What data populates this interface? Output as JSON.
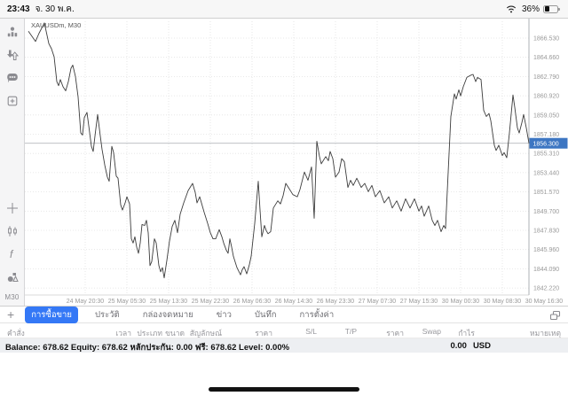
{
  "status_bar": {
    "time": "23:43",
    "date": "จ. 30 พ.ค.",
    "battery_percent": "36%"
  },
  "sidebar": {
    "icons": [
      "quotes-icon",
      "trade-icon",
      "chat-icon",
      "new-chart-icon",
      "crosshair-icon",
      "chart-type-icon",
      "indicators-icon",
      "objects-icon"
    ],
    "timeframe": "M30"
  },
  "chart_data": {
    "type": "line",
    "title": "XAUUSDm, M30",
    "symbol": "XAUUSDm",
    "timeframe": "M30",
    "current_price": "1856.300",
    "ylim": [
      1841.3,
      1868.4
    ],
    "grid": true,
    "legend": "none",
    "y_ticks": [
      "1866.530",
      "1864.660",
      "1862.790",
      "1860.920",
      "1859.050",
      "1857.180",
      "1855.310",
      "1853.440",
      "1851.570",
      "1849.700",
      "1847.830",
      "1845.960",
      "1844.090",
      "1842.220"
    ],
    "x_ticks": [
      "24 May 20:30",
      "25 May 05:30",
      "25 May 13:30",
      "25 May 22:30",
      "26 May 06:30",
      "26 May 14:30",
      "26 May 23:30",
      "27 May 07:30",
      "27 May 15:30",
      "30 May 00:30",
      "30 May 08:30",
      "30 May 16:30"
    ],
    "series": [
      {
        "name": "XAUUSDm M30 close",
        "points": [
          [
            32,
            1867.2
          ],
          [
            36,
            1866.7
          ],
          [
            40,
            1866.2
          ],
          [
            44,
            1867.0
          ],
          [
            50,
            1868.0
          ],
          [
            55,
            1866.0
          ],
          [
            58,
            1865.5
          ],
          [
            61,
            1864.7
          ],
          [
            64,
            1862.3
          ],
          [
            66,
            1861.9
          ],
          [
            68,
            1862.5
          ],
          [
            71,
            1861.8
          ],
          [
            74,
            1861.4
          ],
          [
            77,
            1862.3
          ],
          [
            80,
            1863.6
          ],
          [
            82,
            1863.9
          ],
          [
            85,
            1862.8
          ],
          [
            88,
            1860.8
          ],
          [
            91,
            1857.3
          ],
          [
            93,
            1857.1
          ],
          [
            95,
            1858.8
          ],
          [
            98,
            1859.3
          ],
          [
            100,
            1858.0
          ],
          [
            103,
            1856.0
          ],
          [
            105,
            1855.5
          ],
          [
            107,
            1857.0
          ],
          [
            110,
            1859.1
          ],
          [
            113,
            1857.0
          ],
          [
            115,
            1855.7
          ],
          [
            118,
            1854.2
          ],
          [
            121,
            1853.0
          ],
          [
            123,
            1852.6
          ],
          [
            126,
            1856.0
          ],
          [
            128,
            1855.4
          ],
          [
            131,
            1853.1
          ],
          [
            133,
            1852.9
          ],
          [
            136,
            1850.3
          ],
          [
            138,
            1849.8
          ],
          [
            141,
            1850.5
          ],
          [
            143,
            1851.1
          ],
          [
            146,
            1850.4
          ],
          [
            148,
            1847.0
          ],
          [
            150,
            1846.6
          ],
          [
            152,
            1847.2
          ],
          [
            154,
            1846.2
          ],
          [
            156,
            1845.6
          ],
          [
            158,
            1846.6
          ],
          [
            160,
            1848.4
          ],
          [
            163,
            1848.3
          ],
          [
            165,
            1848.8
          ],
          [
            167,
            1847.6
          ],
          [
            169,
            1844.4
          ],
          [
            171,
            1844.8
          ],
          [
            174,
            1847.0
          ],
          [
            176,
            1846.6
          ],
          [
            179,
            1844.4
          ],
          [
            181,
            1843.8
          ],
          [
            183,
            1844.2
          ],
          [
            185,
            1843.2
          ],
          [
            188,
            1844.9
          ],
          [
            191,
            1846.8
          ],
          [
            194,
            1848.2
          ],
          [
            197,
            1848.8
          ],
          [
            200,
            1847.6
          ],
          [
            203,
            1849.4
          ],
          [
            207,
            1850.5
          ],
          [
            212,
            1851.7
          ],
          [
            217,
            1852.4
          ],
          [
            220,
            1851.5
          ],
          [
            222,
            1850.5
          ],
          [
            225,
            1851.1
          ],
          [
            230,
            1849.6
          ],
          [
            234,
            1848.5
          ],
          [
            237,
            1847.6
          ],
          [
            240,
            1847.0
          ],
          [
            243,
            1847.0
          ],
          [
            247,
            1847.9
          ],
          [
            250,
            1847.2
          ],
          [
            252,
            1846.6
          ],
          [
            255,
            1845.9
          ],
          [
            257,
            1845.6
          ],
          [
            259,
            1847.0
          ],
          [
            261,
            1846.2
          ],
          [
            263,
            1845.3
          ],
          [
            267,
            1844.2
          ],
          [
            271,
            1843.5
          ],
          [
            273,
            1844.0
          ],
          [
            275,
            1844.3
          ],
          [
            278,
            1843.6
          ],
          [
            281,
            1844.5
          ],
          [
            283,
            1845.3
          ],
          [
            287,
            1848.5
          ],
          [
            291,
            1852.6
          ],
          [
            293,
            1849.8
          ],
          [
            295,
            1847.2
          ],
          [
            298,
            1848.3
          ],
          [
            300,
            1847.8
          ],
          [
            302,
            1847.5
          ],
          [
            305,
            1847.7
          ],
          [
            308,
            1850.0
          ],
          [
            313,
            1850.7
          ],
          [
            316,
            1850.4
          ],
          [
            319,
            1851.2
          ],
          [
            322,
            1852.4
          ],
          [
            325,
            1852.0
          ],
          [
            330,
            1851.3
          ],
          [
            335,
            1851.1
          ],
          [
            338,
            1851.8
          ],
          [
            343,
            1853.5
          ],
          [
            347,
            1852.7
          ],
          [
            351,
            1854.0
          ],
          [
            354,
            1849.0
          ],
          [
            357,
            1856.5
          ],
          [
            360,
            1855.0
          ],
          [
            362,
            1854.3
          ],
          [
            367,
            1855.0
          ],
          [
            370,
            1854.6
          ],
          [
            372,
            1855.5
          ],
          [
            375,
            1854.8
          ],
          [
            378,
            1853.0
          ],
          [
            382,
            1853.5
          ],
          [
            385,
            1854.8
          ],
          [
            388,
            1854.5
          ],
          [
            392,
            1852.0
          ],
          [
            395,
            1852.7
          ],
          [
            398,
            1852.2
          ],
          [
            402,
            1852.9
          ],
          [
            407,
            1852.0
          ],
          [
            411,
            1852.4
          ],
          [
            415,
            1851.6
          ],
          [
            419,
            1852.2
          ],
          [
            423,
            1851.1
          ],
          [
            428,
            1851.7
          ],
          [
            433,
            1850.5
          ],
          [
            438,
            1851.1
          ],
          [
            442,
            1850.0
          ],
          [
            447,
            1850.7
          ],
          [
            452,
            1849.7
          ],
          [
            457,
            1850.9
          ],
          [
            462,
            1850.0
          ],
          [
            467,
            1850.9
          ],
          [
            472,
            1849.7
          ],
          [
            475,
            1850.2
          ],
          [
            478,
            1849.2
          ],
          [
            483,
            1850.2
          ],
          [
            487,
            1848.8
          ],
          [
            490,
            1848.3
          ],
          [
            493,
            1848.8
          ],
          [
            497,
            1847.7
          ],
          [
            500,
            1848.3
          ],
          [
            502,
            1848.0
          ],
          [
            505,
            1853.5
          ],
          [
            508,
            1858.9
          ],
          [
            512,
            1861.1
          ],
          [
            514,
            1860.6
          ],
          [
            517,
            1861.5
          ],
          [
            519,
            1860.9
          ],
          [
            522,
            1861.8
          ],
          [
            526,
            1862.7
          ],
          [
            530,
            1862.9
          ],
          [
            533,
            1863.0
          ],
          [
            536,
            1862.3
          ],
          [
            538,
            1862.7
          ],
          [
            542,
            1862.5
          ],
          [
            545,
            1859.5
          ],
          [
            548,
            1858.9
          ],
          [
            551,
            1859.2
          ],
          [
            553,
            1858.5
          ],
          [
            557,
            1856.1
          ],
          [
            559,
            1855.6
          ],
          [
            562,
            1856.1
          ],
          [
            566,
            1855.1
          ],
          [
            568,
            1855.4
          ],
          [
            571,
            1854.9
          ],
          [
            574,
            1857.3
          ],
          [
            578,
            1861.0
          ],
          [
            580,
            1859.8
          ],
          [
            583,
            1857.8
          ],
          [
            585,
            1857.3
          ],
          [
            588,
            1858.3
          ],
          [
            590,
            1859.1
          ],
          [
            593,
            1857.8
          ],
          [
            596,
            1856.3
          ]
        ]
      }
    ]
  },
  "tabs": {
    "add_button": "+",
    "windows_icon": "windows-icon",
    "items": [
      {
        "label": "การซื้อขาย",
        "active": true
      },
      {
        "label": "ประวัติ",
        "active": false
      },
      {
        "label": "กล่องจดหมาย",
        "active": false
      },
      {
        "label": "ข่าว",
        "active": false
      },
      {
        "label": "บันทึก",
        "active": false
      },
      {
        "label": "การตั้งค่า",
        "active": false
      }
    ]
  },
  "table": {
    "headers": [
      "คำสั่ง",
      "เวลา",
      "ประเภท",
      "ขนาด",
      "สัญลักษณ์",
      "ราคา",
      "S/L",
      "T/P",
      "ราคา",
      "Swap",
      "กำไร",
      "หมายเหตุ"
    ]
  },
  "account": {
    "summary": "Balance: 678.62 Equity: 678.62 หลักประกัน: 0.00 ฟรี: 678.62 Level: 0.00%",
    "profit_value": "0.00",
    "profit_currency": "USD"
  },
  "colors": {
    "accent_blue": "#3478f6",
    "price_tag_blue": "#3d76c2",
    "chart_line": "#3c3c3c",
    "axis_text": "#9a9a9a"
  }
}
